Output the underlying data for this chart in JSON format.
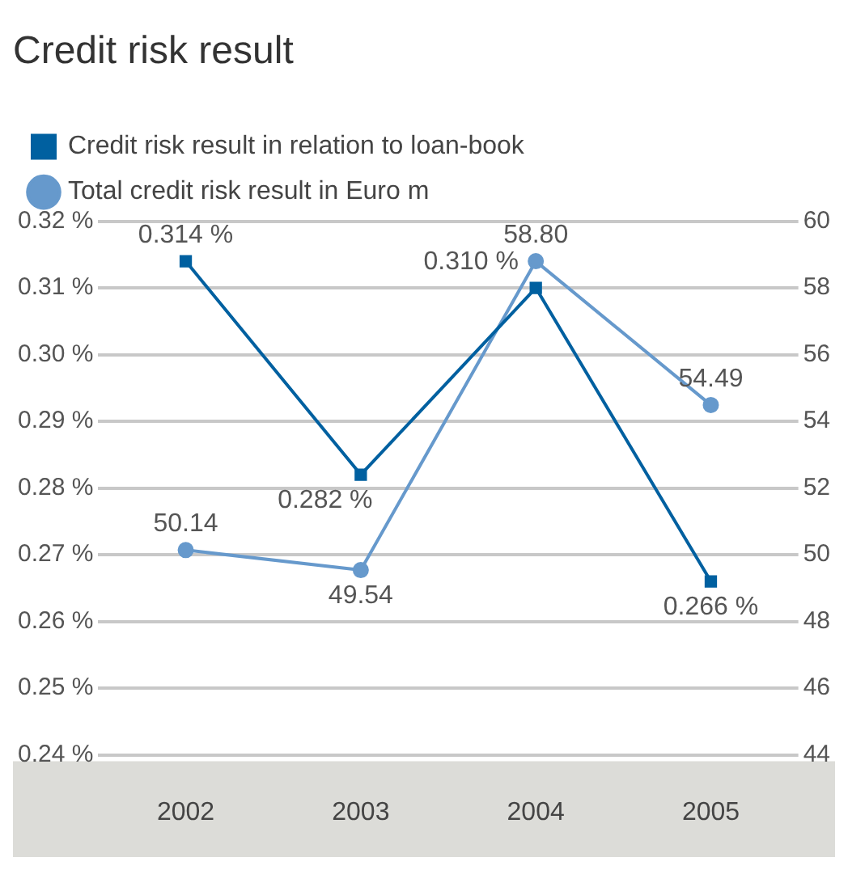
{
  "chart_data": {
    "type": "line",
    "title": "Credit risk result",
    "categories": [
      "2002",
      "2003",
      "2004",
      "2005"
    ],
    "series": [
      {
        "name": "Credit risk result in relation to loan-book",
        "color": "#0060a0",
        "marker": "square",
        "values": [
          0.314,
          0.282,
          0.31,
          0.266
        ],
        "value_labels": [
          "0.314 %",
          "0.282 %",
          "0.310 %",
          "0.266 %"
        ]
      },
      {
        "name": "Total credit risk result in Euro m",
        "color": "#6699cc",
        "marker": "circle",
        "axis": "y2",
        "values": [
          50.14,
          49.54,
          58.8,
          54.49
        ],
        "value_labels": [
          "50.14",
          "49.54",
          "58.80",
          "54.49"
        ]
      }
    ],
    "ylim": [
      0.24,
      0.32
    ],
    "yticks": [
      {
        "value": 0.24,
        "label": "0.24 %"
      },
      {
        "value": 0.25,
        "label": "0.25 %"
      },
      {
        "value": 0.26,
        "label": "0.26 %"
      },
      {
        "value": 0.27,
        "label": "0.27 %"
      },
      {
        "value": 0.28,
        "label": "0.28 %"
      },
      {
        "value": 0.29,
        "label": "0.29 %"
      },
      {
        "value": 0.3,
        "label": "0.30 %"
      },
      {
        "value": 0.31,
        "label": "0.31 %"
      },
      {
        "value": 0.32,
        "label": "0.32 %"
      }
    ],
    "y2lim": [
      44,
      60
    ],
    "y2ticks": [
      44,
      46,
      48,
      50,
      52,
      54,
      56,
      58,
      60
    ],
    "grid": "y",
    "legend": "top left"
  }
}
